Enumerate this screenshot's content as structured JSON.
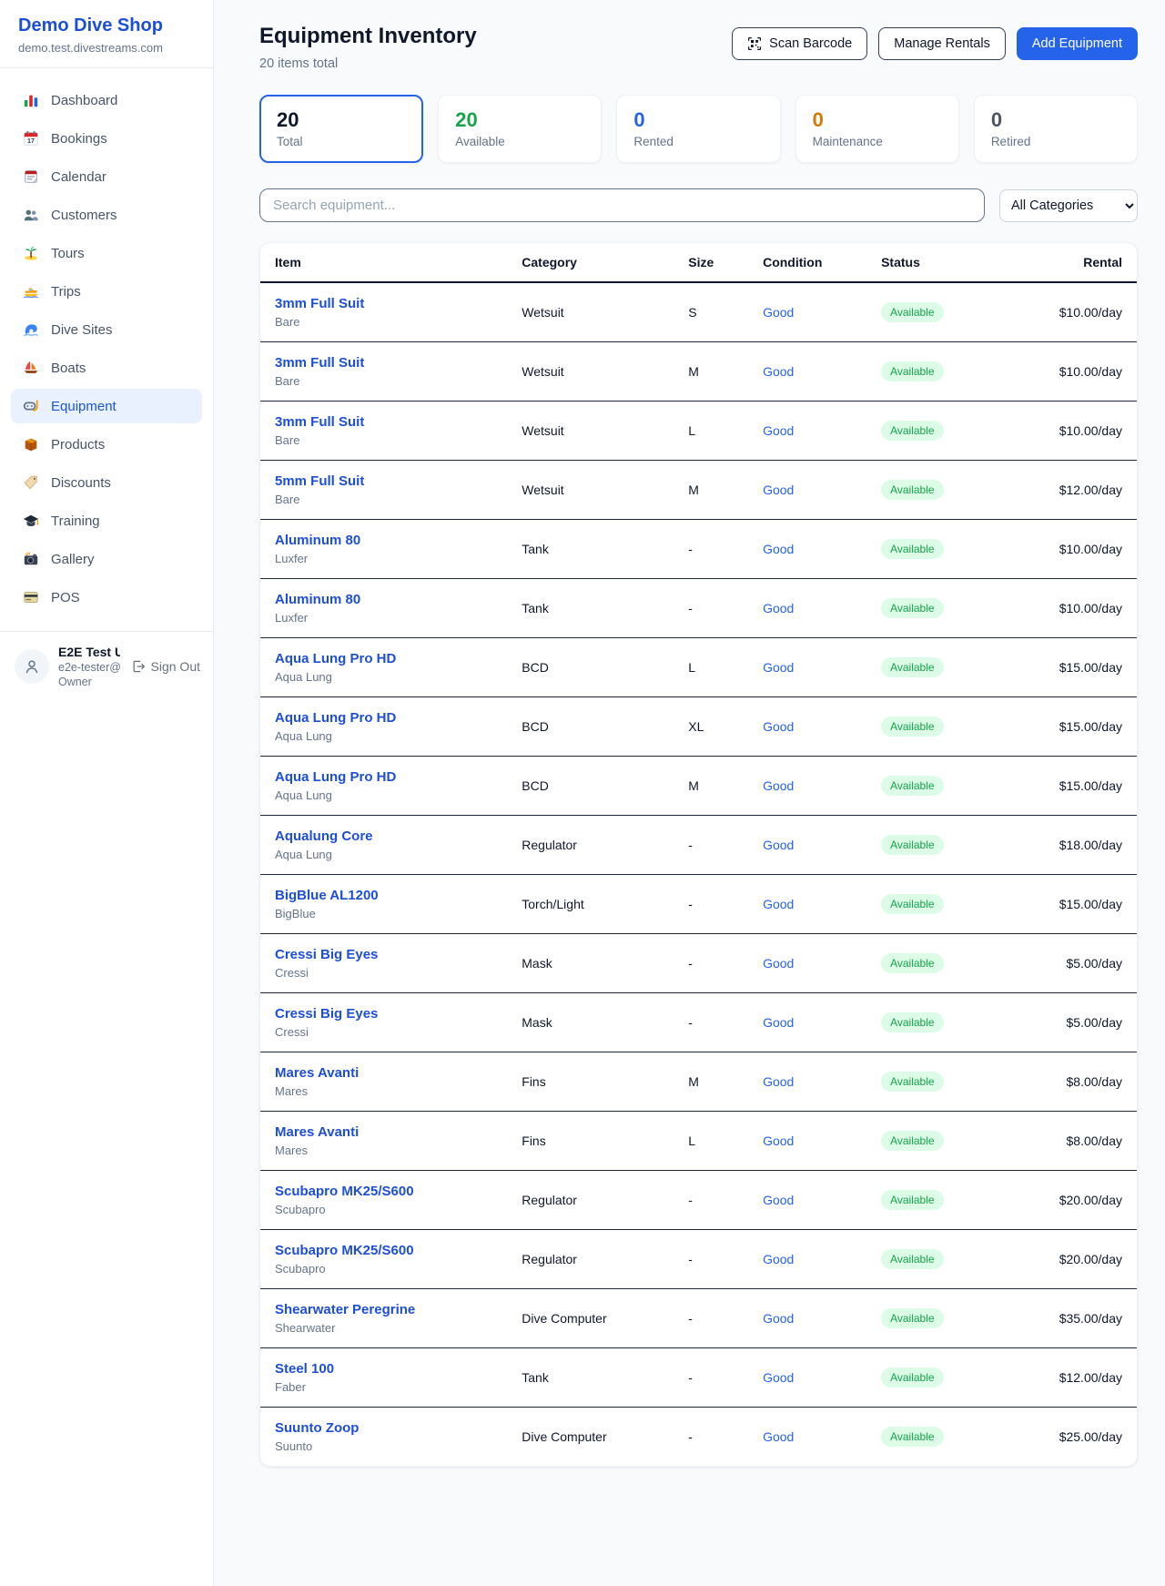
{
  "brand": {
    "name": "Demo Dive Shop",
    "domain": "demo.test.divestreams.com"
  },
  "sidebar": {
    "items": [
      {
        "label": "Dashboard",
        "icon": "bar-chart-icon",
        "active": false
      },
      {
        "label": "Bookings",
        "icon": "bookings-calendar-icon",
        "active": false
      },
      {
        "label": "Calendar",
        "icon": "calendar-icon",
        "active": false
      },
      {
        "label": "Customers",
        "icon": "customers-icon",
        "active": false
      },
      {
        "label": "Tours",
        "icon": "tours-island-icon",
        "active": false
      },
      {
        "label": "Trips",
        "icon": "trips-boat-icon",
        "active": false
      },
      {
        "label": "Dive Sites",
        "icon": "dive-sites-wave-icon",
        "active": false
      },
      {
        "label": "Boats",
        "icon": "boats-sailboat-icon",
        "active": false
      },
      {
        "label": "Equipment",
        "icon": "equipment-dive-mask-icon",
        "active": true
      },
      {
        "label": "Products",
        "icon": "products-box-icon",
        "active": false
      },
      {
        "label": "Discounts",
        "icon": "discounts-tag-icon",
        "active": false
      },
      {
        "label": "Training",
        "icon": "training-grad-cap-icon",
        "active": false
      },
      {
        "label": "Gallery",
        "icon": "gallery-camera-icon",
        "active": false
      },
      {
        "label": "POS",
        "icon": "pos-credit-card-icon",
        "active": false
      }
    ]
  },
  "user": {
    "name": "E2E Test U...",
    "email": "e2e-tester@...",
    "role": "Owner",
    "sign_out_label": "Sign Out"
  },
  "header": {
    "title": "Equipment Inventory",
    "subtitle": "20 items total",
    "scan_barcode_label": "Scan Barcode",
    "manage_rentals_label": "Manage Rentals",
    "add_equipment_label": "Add Equipment"
  },
  "stats": [
    {
      "value": "20",
      "label": "Total",
      "color": "#0f172a",
      "active": true
    },
    {
      "value": "20",
      "label": "Available",
      "color": "#16a34a",
      "active": false
    },
    {
      "value": "0",
      "label": "Rented",
      "color": "#2563eb",
      "active": false
    },
    {
      "value": "0",
      "label": "Maintenance",
      "color": "#d97706",
      "active": false
    },
    {
      "value": "0",
      "label": "Retired",
      "color": "#4b5563",
      "active": false
    }
  ],
  "filters": {
    "search_placeholder": "Search equipment...",
    "category": "All Categories"
  },
  "table": {
    "columns": [
      "Item",
      "Category",
      "Size",
      "Condition",
      "Status",
      "Rental"
    ],
    "rows": [
      {
        "name": "3mm Full Suit",
        "brand": "Bare",
        "category": "Wetsuit",
        "size": "S",
        "condition": "Good",
        "status": "Available",
        "rental": "$10.00/day"
      },
      {
        "name": "3mm Full Suit",
        "brand": "Bare",
        "category": "Wetsuit",
        "size": "M",
        "condition": "Good",
        "status": "Available",
        "rental": "$10.00/day"
      },
      {
        "name": "3mm Full Suit",
        "brand": "Bare",
        "category": "Wetsuit",
        "size": "L",
        "condition": "Good",
        "status": "Available",
        "rental": "$10.00/day"
      },
      {
        "name": "5mm Full Suit",
        "brand": "Bare",
        "category": "Wetsuit",
        "size": "M",
        "condition": "Good",
        "status": "Available",
        "rental": "$12.00/day"
      },
      {
        "name": "Aluminum 80",
        "brand": "Luxfer",
        "category": "Tank",
        "size": "-",
        "condition": "Good",
        "status": "Available",
        "rental": "$10.00/day"
      },
      {
        "name": "Aluminum 80",
        "brand": "Luxfer",
        "category": "Tank",
        "size": "-",
        "condition": "Good",
        "status": "Available",
        "rental": "$10.00/day"
      },
      {
        "name": "Aqua Lung Pro HD",
        "brand": "Aqua Lung",
        "category": "BCD",
        "size": "L",
        "condition": "Good",
        "status": "Available",
        "rental": "$15.00/day"
      },
      {
        "name": "Aqua Lung Pro HD",
        "brand": "Aqua Lung",
        "category": "BCD",
        "size": "XL",
        "condition": "Good",
        "status": "Available",
        "rental": "$15.00/day"
      },
      {
        "name": "Aqua Lung Pro HD",
        "brand": "Aqua Lung",
        "category": "BCD",
        "size": "M",
        "condition": "Good",
        "status": "Available",
        "rental": "$15.00/day"
      },
      {
        "name": "Aqualung Core",
        "brand": "Aqua Lung",
        "category": "Regulator",
        "size": "-",
        "condition": "Good",
        "status": "Available",
        "rental": "$18.00/day"
      },
      {
        "name": "BigBlue AL1200",
        "brand": "BigBlue",
        "category": "Torch/Light",
        "size": "-",
        "condition": "Good",
        "status": "Available",
        "rental": "$15.00/day"
      },
      {
        "name": "Cressi Big Eyes",
        "brand": "Cressi",
        "category": "Mask",
        "size": "-",
        "condition": "Good",
        "status": "Available",
        "rental": "$5.00/day"
      },
      {
        "name": "Cressi Big Eyes",
        "brand": "Cressi",
        "category": "Mask",
        "size": "-",
        "condition": "Good",
        "status": "Available",
        "rental": "$5.00/day"
      },
      {
        "name": "Mares Avanti",
        "brand": "Mares",
        "category": "Fins",
        "size": "M",
        "condition": "Good",
        "status": "Available",
        "rental": "$8.00/day"
      },
      {
        "name": "Mares Avanti",
        "brand": "Mares",
        "category": "Fins",
        "size": "L",
        "condition": "Good",
        "status": "Available",
        "rental": "$8.00/day"
      },
      {
        "name": "Scubapro MK25/S600",
        "brand": "Scubapro",
        "category": "Regulator",
        "size": "-",
        "condition": "Good",
        "status": "Available",
        "rental": "$20.00/day"
      },
      {
        "name": "Scubapro MK25/S600",
        "brand": "Scubapro",
        "category": "Regulator",
        "size": "-",
        "condition": "Good",
        "status": "Available",
        "rental": "$20.00/day"
      },
      {
        "name": "Shearwater Peregrine",
        "brand": "Shearwater",
        "category": "Dive Computer",
        "size": "-",
        "condition": "Good",
        "status": "Available",
        "rental": "$35.00/day"
      },
      {
        "name": "Steel 100",
        "brand": "Faber",
        "category": "Tank",
        "size": "-",
        "condition": "Good",
        "status": "Available",
        "rental": "$12.00/day"
      },
      {
        "name": "Suunto Zoop",
        "brand": "Suunto",
        "category": "Dive Computer",
        "size": "-",
        "condition": "Good",
        "status": "Available",
        "rental": "$25.00/day"
      }
    ]
  }
}
